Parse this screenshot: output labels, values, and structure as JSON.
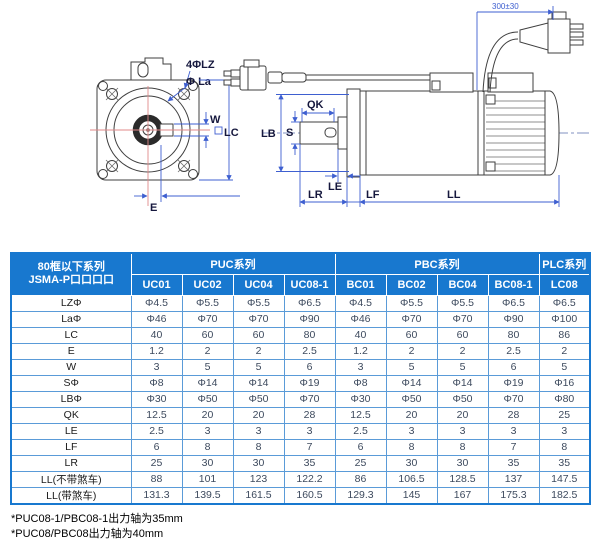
{
  "drawing": {
    "front": {
      "lz_label": "4ΦLZ",
      "la_label": "Φ La",
      "w_label": "W",
      "lc_label": "LC",
      "e_label": "E"
    },
    "side": {
      "qk": "QK",
      "s": "S",
      "lb": "LB",
      "le": "LE",
      "lr": "LR",
      "lf": "LF",
      "ll": "LL",
      "cable_length": "300±30"
    }
  },
  "table": {
    "corner_header": {
      "line1": "80框以下系列",
      "line2": "JSMA-P口口口口"
    },
    "series_groups": [
      {
        "label": "PUC系列",
        "span": 4
      },
      {
        "label": "PBC系列",
        "span": 4
      },
      {
        "label": "PLC系列",
        "span": 1
      }
    ],
    "models": [
      "UC01",
      "UC02",
      "UC04",
      "UC08-1",
      "BC01",
      "BC02",
      "BC04",
      "BC08-1",
      "LC08"
    ],
    "rows": [
      {
        "label": "LZΦ",
        "values": [
          "Φ4.5",
          "Φ5.5",
          "Φ5.5",
          "Φ6.5",
          "Φ4.5",
          "Φ5.5",
          "Φ5.5",
          "Φ6.5",
          "Φ6.5"
        ]
      },
      {
        "label": "LaΦ",
        "values": [
          "Φ46",
          "Φ70",
          "Φ70",
          "Φ90",
          "Φ46",
          "Φ70",
          "Φ70",
          "Φ90",
          "Φ100"
        ]
      },
      {
        "label": "LC",
        "values": [
          "40",
          "60",
          "60",
          "80",
          "40",
          "60",
          "60",
          "80",
          "86"
        ]
      },
      {
        "label": "E",
        "values": [
          "1.2",
          "2",
          "2",
          "2.5",
          "1.2",
          "2",
          "2",
          "2.5",
          "2"
        ]
      },
      {
        "label": "W",
        "values": [
          "3",
          "5",
          "5",
          "6",
          "3",
          "5",
          "5",
          "6",
          "5"
        ]
      },
      {
        "label": "SΦ",
        "values": [
          "Φ8",
          "Φ14",
          "Φ14",
          "Φ19",
          "Φ8",
          "Φ14",
          "Φ14",
          "Φ19",
          "Φ16"
        ]
      },
      {
        "label": "LBΦ",
        "values": [
          "Φ30",
          "Φ50",
          "Φ50",
          "Φ70",
          "Φ30",
          "Φ50",
          "Φ50",
          "Φ70",
          "Φ80"
        ]
      },
      {
        "label": "QK",
        "values": [
          "12.5",
          "20",
          "20",
          "28",
          "12.5",
          "20",
          "20",
          "28",
          "25"
        ]
      },
      {
        "label": "LE",
        "values": [
          "2.5",
          "3",
          "3",
          "3",
          "2.5",
          "3",
          "3",
          "3",
          "3"
        ]
      },
      {
        "label": "LF",
        "values": [
          "6",
          "8",
          "8",
          "7",
          "6",
          "8",
          "8",
          "7",
          "8"
        ]
      },
      {
        "label": "LR",
        "values": [
          "25",
          "30",
          "30",
          "35",
          "25",
          "30",
          "30",
          "35",
          "35"
        ]
      },
      {
        "label": "LL(不带煞车)",
        "values": [
          "88",
          "101",
          "123",
          "122.2",
          "86",
          "106.5",
          "128.5",
          "137",
          "147.5"
        ]
      },
      {
        "label": "LL(带煞车)",
        "values": [
          "131.3",
          "139.5",
          "161.5",
          "160.5",
          "129.3",
          "145",
          "167",
          "175.3",
          "182.5"
        ]
      }
    ]
  },
  "footnotes": [
    "*PUC08-1/PBC08-1出力轴为35mm",
    "*PUC08/PBC08出力轴为40mm"
  ],
  "colors": {
    "header_bg": "#1878cf",
    "header_text": "#ffffff",
    "cell_border": "#5a9bd8",
    "body_text": "#3d4a5e",
    "dimension_blue": "#3e5fd0",
    "centerline_red": "#e08a8a",
    "outline_gray": "#3f3f3f"
  }
}
